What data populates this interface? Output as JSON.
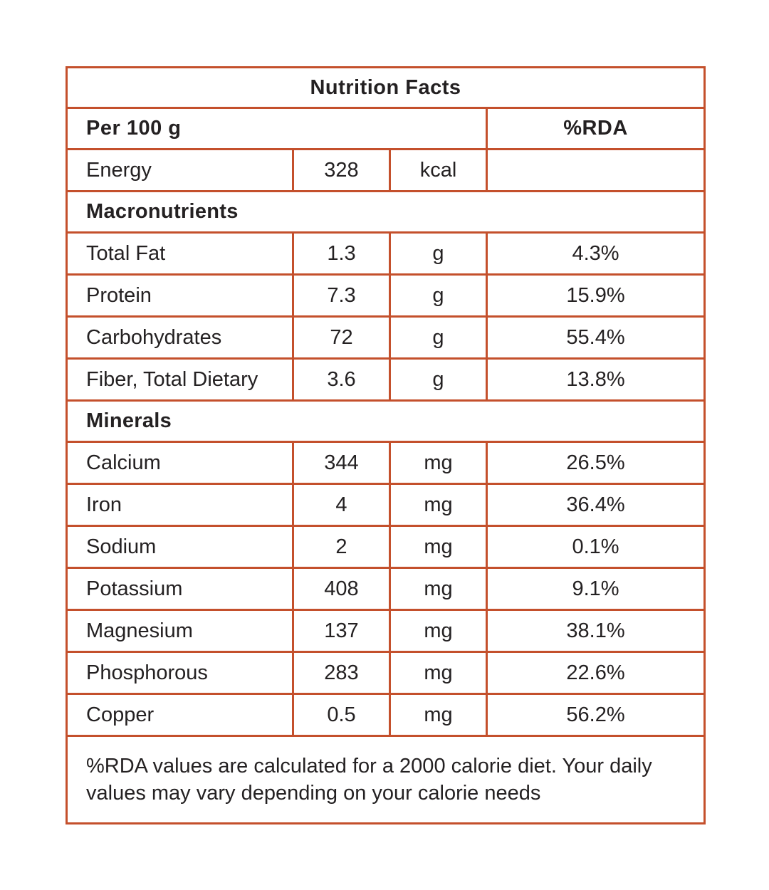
{
  "colors": {
    "accent": "#C4502C",
    "text": "#242122",
    "background": "#FFFFFF"
  },
  "table": {
    "title": "Nutrition Facts",
    "serving_header": "Per 100 g",
    "rda_header": "%RDA",
    "energy_row": {
      "label": "Energy",
      "value": "328",
      "unit": "kcal",
      "rda": ""
    },
    "sections": [
      {
        "header": "Macronutrients",
        "rows": [
          {
            "label": "Total Fat",
            "value": "1.3",
            "unit": "g",
            "rda": "4.3%"
          },
          {
            "label": "Protein",
            "value": "7.3",
            "unit": "g",
            "rda": "15.9%"
          },
          {
            "label": "Carbohydrates",
            "value": "72",
            "unit": "g",
            "rda": "55.4%"
          },
          {
            "label": "Fiber, Total Dietary",
            "value": "3.6",
            "unit": "g",
            "rda": "13.8%"
          }
        ]
      },
      {
        "header": "Minerals",
        "rows": [
          {
            "label": "Calcium",
            "value": "344",
            "unit": "mg",
            "rda": "26.5%"
          },
          {
            "label": "Iron",
            "value": "4",
            "unit": "mg",
            "rda": "36.4%"
          },
          {
            "label": "Sodium",
            "value": "2",
            "unit": "mg",
            "rda": "0.1%"
          },
          {
            "label": "Potassium",
            "value": "408",
            "unit": "mg",
            "rda": "9.1%"
          },
          {
            "label": "Magnesium",
            "value": "137",
            "unit": "mg",
            "rda": "38.1%"
          },
          {
            "label": "Phosphorous",
            "value": "283",
            "unit": "mg",
            "rda": "22.6%"
          },
          {
            "label": "Copper",
            "value": "0.5",
            "unit": "mg",
            "rda": "56.2%"
          }
        ]
      }
    ],
    "footnote": "%RDA values are calculated for a 2000 calorie diet. Your daily values may vary depending on your calorie needs"
  }
}
